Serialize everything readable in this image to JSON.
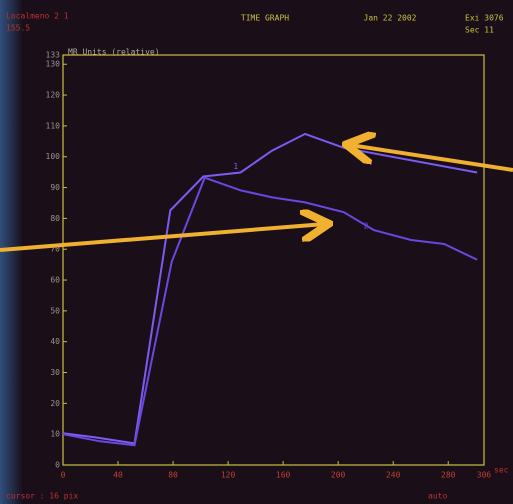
{
  "chart_data": {
    "type": "line",
    "title": "TIME GRAPH",
    "header": {
      "left": "Localmeno 2 1",
      "left_sub": "155.5",
      "date": "Jan 22 2002",
      "right": "Exi 3076",
      "right_sub": "Sec 11"
    },
    "y_label": "MR Units (relative)",
    "x_unit": "sec",
    "footer": {
      "left": "cursor : 16 pix",
      "right": "auto"
    },
    "xlim": [
      0,
      306
    ],
    "xticks": [
      0,
      40,
      80,
      120,
      160,
      200,
      240,
      280,
      306
    ],
    "ylim": [
      0,
      133
    ],
    "yticks": [
      0,
      10,
      20,
      30,
      40,
      50,
      60,
      70,
      80,
      90,
      100,
      110,
      120,
      130,
      133
    ],
    "series": [
      {
        "name": "1",
        "color": "#7a5cf0",
        "x": [
          0,
          23,
          52,
          78,
          102,
          129,
          152,
          176,
          204,
          301
        ],
        "values": [
          10.3,
          9,
          7,
          82.6,
          93.6,
          94.9,
          102,
          107.4,
          102.9,
          94.9
        ]
      },
      {
        "name": "2",
        "color": "#6a48e0",
        "x": [
          0,
          27,
          52,
          79,
          103,
          129,
          152,
          176,
          204,
          226,
          253,
          277,
          301
        ],
        "values": [
          10,
          7.7,
          6.4,
          65.9,
          93.2,
          89.1,
          86.8,
          85.2,
          82,
          76.2,
          73,
          71.7,
          66.6
        ]
      }
    ]
  }
}
